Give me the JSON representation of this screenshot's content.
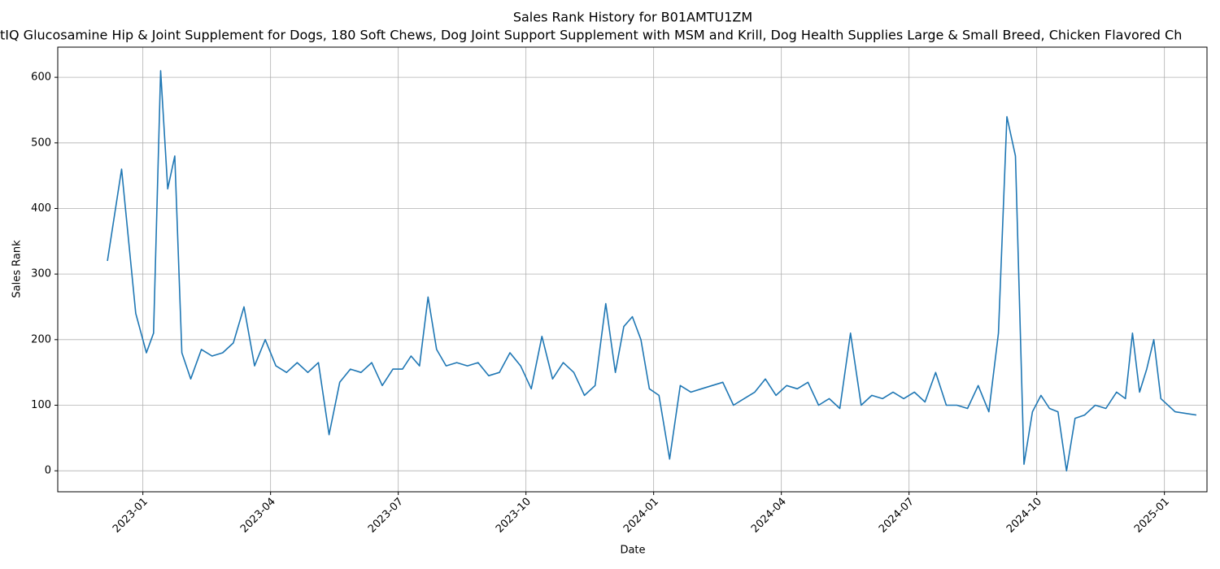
{
  "chart_data": {
    "type": "line",
    "title": "Sales Rank History for B01AMTU1ZM",
    "subtitle": "tIQ Glucosamine Hip & Joint Supplement for Dogs, 180 Soft Chews, Dog Joint Support Supplement with MSM and Krill, Dog Health Supplies Large & Small Breed, Chicken Flavored Ch",
    "x_label": "Date",
    "y_label": "Sales Rank",
    "x": [
      "2022-12",
      "2022-12",
      "2022-12",
      "2023-01",
      "2023-01",
      "2023-01",
      "2023-01",
      "2023-01",
      "2023-01",
      "2023-02",
      "2023-02",
      "2023-02",
      "2023-02",
      "2023-03",
      "2023-03",
      "2023-03",
      "2023-03",
      "2023-04",
      "2023-04",
      "2023-04",
      "2023-04",
      "2023-05",
      "2023-05",
      "2023-05",
      "2023-05",
      "2023-06",
      "2023-06",
      "2023-06",
      "2023-06",
      "2023-07",
      "2023-07",
      "2023-07",
      "2023-07",
      "2023-07",
      "2023-08",
      "2023-08",
      "2023-08",
      "2023-08",
      "2023-09",
      "2023-09",
      "2023-09",
      "2023-09",
      "2023-10",
      "2023-10",
      "2023-10",
      "2023-10",
      "2023-11",
      "2023-11",
      "2023-11",
      "2023-11",
      "2023-12",
      "2023-12",
      "2023-12",
      "2023-12",
      "2023-12",
      "2024-01",
      "2024-01",
      "2024-01",
      "2024-01",
      "2024-02",
      "2024-02",
      "2024-02",
      "2024-02",
      "2024-03",
      "2024-03",
      "2024-03",
      "2024-03",
      "2024-04",
      "2024-04",
      "2024-04",
      "2024-04",
      "2024-05",
      "2024-05",
      "2024-05",
      "2024-05",
      "2024-06",
      "2024-06",
      "2024-06",
      "2024-06",
      "2024-07",
      "2024-07",
      "2024-07",
      "2024-07",
      "2024-08",
      "2024-08",
      "2024-08",
      "2024-08",
      "2024-09",
      "2024-09",
      "2024-09",
      "2024-09",
      "2024-09",
      "2024-10",
      "2024-10",
      "2024-10",
      "2024-10",
      "2024-10",
      "2024-11",
      "2024-11",
      "2024-11",
      "2024-11",
      "2024-12",
      "2024-12",
      "2024-12",
      "2024-12",
      "2024-12",
      "2024-12",
      "2025-01",
      "2025-01"
    ],
    "series": [
      {
        "name": "Sales Rank",
        "color": "#1f77b4",
        "values": [
          320,
          460,
          240,
          180,
          210,
          610,
          430,
          480,
          180,
          140,
          185,
          175,
          180,
          195,
          250,
          160,
          200,
          160,
          150,
          165,
          150,
          165,
          55,
          135,
          155,
          150,
          165,
          130,
          155,
          155,
          175,
          160,
          265,
          185,
          160,
          165,
          160,
          165,
          145,
          150,
          180,
          160,
          125,
          205,
          140,
          165,
          150,
          115,
          130,
          255,
          150,
          220,
          235,
          200,
          125,
          115,
          18,
          130,
          120,
          125,
          130,
          135,
          100,
          110,
          120,
          140,
          115,
          130,
          125,
          135,
          100,
          110,
          95,
          210,
          100,
          115,
          110,
          120,
          110,
          120,
          105,
          150,
          100,
          100,
          95,
          130,
          90,
          210,
          540,
          480,
          10,
          90,
          115,
          95,
          90,
          0,
          80,
          85,
          100,
          95,
          120,
          110,
          210,
          120,
          155,
          200,
          110,
          90,
          85
        ]
      }
    ],
    "xlim": [
      "2022-11",
      "2025-02"
    ],
    "xticks": [
      "2023-01",
      "2023-04",
      "2023-07",
      "2023-10",
      "2024-01",
      "2024-04",
      "2024-07",
      "2024-10",
      "2025-01"
    ],
    "ylim": [
      -32,
      646
    ],
    "yticks": [
      0,
      100,
      200,
      300,
      400,
      500,
      600
    ],
    "grid": true
  }
}
